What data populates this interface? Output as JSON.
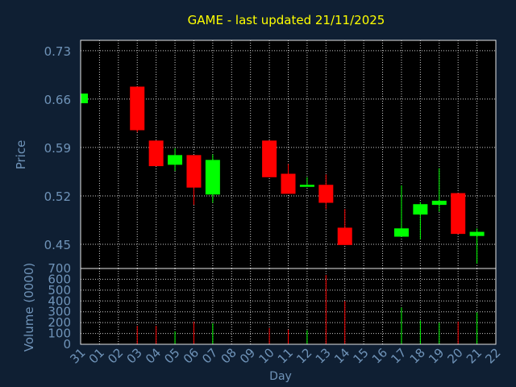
{
  "title": "GAME - last updated 21/11/2025",
  "colors": {
    "background": "#0f1f33",
    "plot_background": "#000000",
    "title": "#ffff00",
    "axis_text": "#6f93b8",
    "up": "#00ff00",
    "down": "#ff0000",
    "grid": "#cccccc",
    "frame": "#e6e6e6"
  },
  "chart_data": [
    {
      "type": "candlestick",
      "ylabel": "Price",
      "ylim": [
        0.415,
        0.745
      ],
      "yticks": [
        "0.73",
        "0.66",
        "0.59",
        "0.52",
        "0.45"
      ],
      "grid": true,
      "candles": [
        {
          "day": "31",
          "open": 0.654,
          "close": 0.668,
          "high": 0.668,
          "low": 0.654,
          "dir": "up"
        },
        {
          "day": "03",
          "open": 0.678,
          "close": 0.615,
          "high": 0.678,
          "low": 0.612,
          "dir": "down"
        },
        {
          "day": "04",
          "open": 0.6,
          "close": 0.563,
          "high": 0.6,
          "low": 0.563,
          "dir": "down"
        },
        {
          "day": "05",
          "open": 0.565,
          "close": 0.579,
          "high": 0.589,
          "low": 0.556,
          "dir": "up"
        },
        {
          "day": "06",
          "open": 0.579,
          "close": 0.532,
          "high": 0.579,
          "low": 0.507,
          "dir": "down"
        },
        {
          "day": "07",
          "open": 0.522,
          "close": 0.572,
          "high": 0.58,
          "low": 0.51,
          "dir": "up"
        },
        {
          "day": "10",
          "open": 0.6,
          "close": 0.547,
          "high": 0.6,
          "low": 0.547,
          "dir": "down"
        },
        {
          "day": "11",
          "open": 0.552,
          "close": 0.523,
          "high": 0.566,
          "low": 0.523,
          "dir": "down"
        },
        {
          "day": "12",
          "open": 0.534,
          "close": 0.536,
          "high": 0.547,
          "low": 0.534,
          "dir": "up"
        },
        {
          "day": "13",
          "open": 0.536,
          "close": 0.51,
          "high": 0.551,
          "low": 0.501,
          "dir": "down"
        },
        {
          "day": "14",
          "open": 0.474,
          "close": 0.449,
          "high": 0.501,
          "low": 0.449,
          "dir": "down"
        },
        {
          "day": "17",
          "open": 0.461,
          "close": 0.473,
          "high": 0.535,
          "low": 0.461,
          "dir": "up"
        },
        {
          "day": "18",
          "open": 0.493,
          "close": 0.508,
          "high": 0.511,
          "low": 0.457,
          "dir": "up"
        },
        {
          "day": "19",
          "open": 0.507,
          "close": 0.513,
          "high": 0.56,
          "low": 0.497,
          "dir": "up"
        },
        {
          "day": "20",
          "open": 0.524,
          "close": 0.465,
          "high": 0.524,
          "low": 0.465,
          "dir": "down"
        },
        {
          "day": "21",
          "open": 0.462,
          "close": 0.468,
          "high": 0.473,
          "low": 0.422,
          "dir": "up"
        }
      ]
    },
    {
      "type": "bar",
      "ylabel": "Volume (0000)",
      "xlabel": "Day",
      "ylim": [
        0,
        700
      ],
      "yticks": [
        "700",
        "600",
        "500",
        "400",
        "300",
        "200",
        "100",
        "0"
      ],
      "grid": true,
      "categories": [
        "31",
        "01",
        "02",
        "03",
        "04",
        "05",
        "06",
        "07",
        "08",
        "09",
        "10",
        "11",
        "12",
        "13",
        "14",
        "15",
        "16",
        "17",
        "18",
        "19",
        "20",
        "21",
        "22"
      ],
      "bars": [
        {
          "day": "03",
          "value": 170,
          "dir": "down"
        },
        {
          "day": "04",
          "value": 170,
          "dir": "down"
        },
        {
          "day": "05",
          "value": 120,
          "dir": "up"
        },
        {
          "day": "06",
          "value": 210,
          "dir": "down"
        },
        {
          "day": "07",
          "value": 195,
          "dir": "up"
        },
        {
          "day": "10",
          "value": 150,
          "dir": "down"
        },
        {
          "day": "11",
          "value": 135,
          "dir": "down"
        },
        {
          "day": "12",
          "value": 130,
          "dir": "up"
        },
        {
          "day": "13",
          "value": 640,
          "dir": "down"
        },
        {
          "day": "14",
          "value": 400,
          "dir": "down"
        },
        {
          "day": "17",
          "value": 340,
          "dir": "up"
        },
        {
          "day": "18",
          "value": 220,
          "dir": "up"
        },
        {
          "day": "19",
          "value": 200,
          "dir": "up"
        },
        {
          "day": "20",
          "value": 210,
          "dir": "down"
        },
        {
          "day": "21",
          "value": 295,
          "dir": "up"
        }
      ]
    }
  ]
}
